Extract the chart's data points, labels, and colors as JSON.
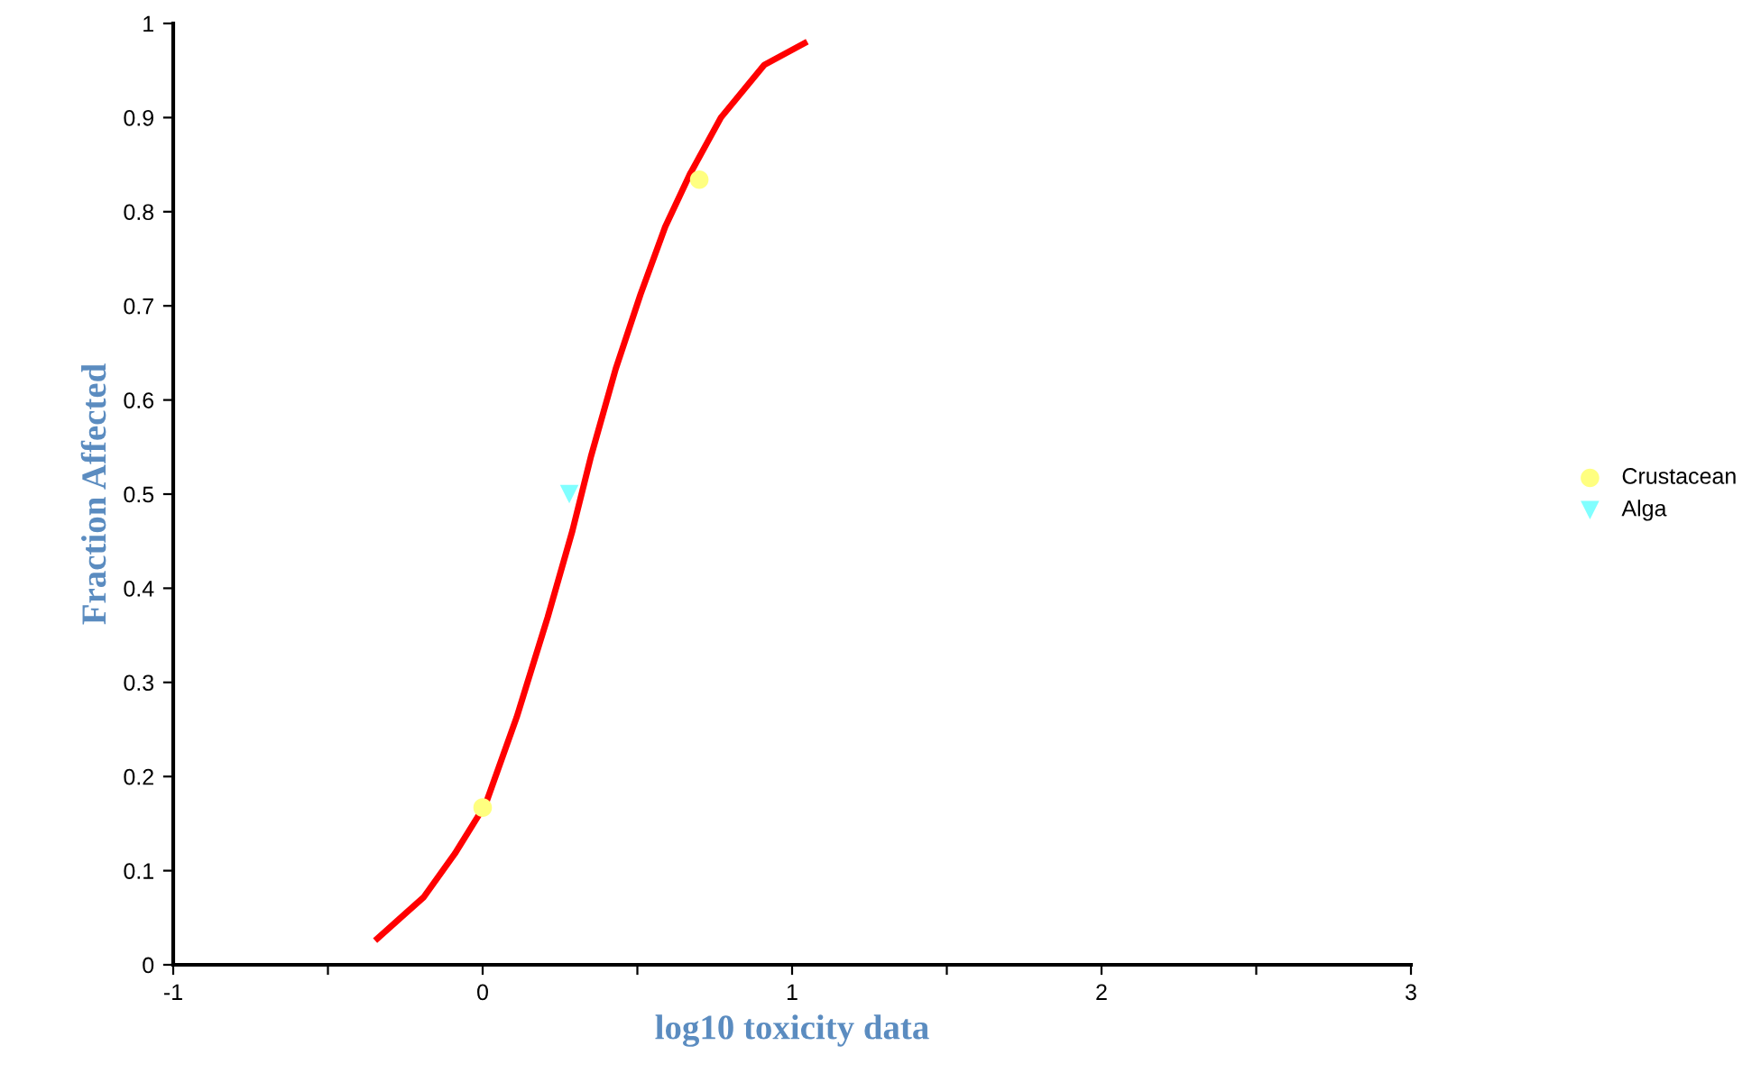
{
  "chart_data": {
    "type": "line",
    "xlabel": "log10 toxicity data",
    "ylabel": "Fraction Affected",
    "xlim": [
      -1,
      3
    ],
    "ylim": [
      0,
      1
    ],
    "xticks": [
      -1,
      {
        "value": -0.5,
        "label": null
      },
      0,
      {
        "value": 0.5,
        "label": null
      },
      1,
      {
        "value": 1.5,
        "label": null
      },
      2,
      {
        "value": 2.5,
        "label": null
      },
      3
    ],
    "yticks": [
      0,
      0.1,
      0.2,
      0.3,
      0.4,
      0.5,
      0.6,
      0.7,
      0.8,
      0.9,
      1
    ],
    "grid": false,
    "legend": "right",
    "series": [
      {
        "color": "#ff0000",
        "marker": "none",
        "line_style": "solid",
        "x": [
          -0.34,
          -0.19,
          -0.09,
          0.01,
          0.11,
          0.21,
          0.29,
          0.35,
          0.43,
          0.51,
          0.59,
          0.67,
          0.77,
          0.91,
          1.04
        ],
        "values": [
          0.028,
          0.072,
          0.118,
          0.171,
          0.263,
          0.369,
          0.461,
          0.54,
          0.633,
          0.712,
          0.784,
          0.84,
          0.9,
          0.956,
          0.979
        ]
      },
      {
        "type": "scatter",
        "name": "Crustacean",
        "color": "#ffff80",
        "marker": "circle",
        "x": [
          0,
          0.7
        ],
        "values": [
          0.167,
          0.834
        ]
      },
      {
        "type": "scatter",
        "name": "Alga",
        "color": "#80ffff",
        "marker": "triangle",
        "x": [
          0.28
        ],
        "values": [
          0.5
        ]
      }
    ]
  }
}
